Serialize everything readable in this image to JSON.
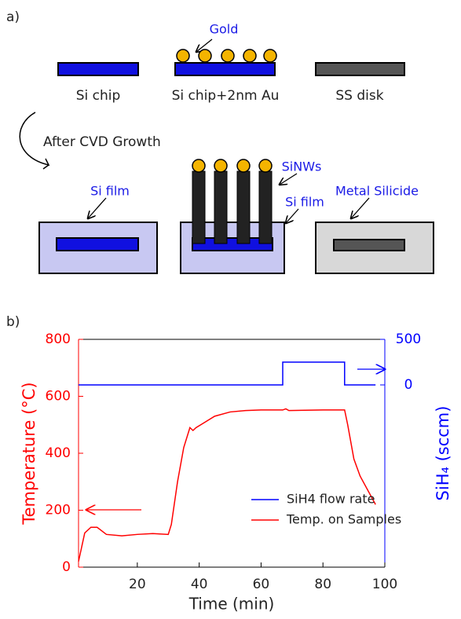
{
  "panel_a": {
    "label": "a)",
    "gold": "Gold",
    "si_chip": "Si chip",
    "si_chip_au": "Si chip+2nm Au",
    "ss_disk": "SS disk",
    "process": "After CVD Growth",
    "si_film_left": "Si film",
    "sinws": "SiNWs",
    "si_film_mid": "Si film",
    "metal_silicide": "Metal Silicide"
  },
  "chart_data": {
    "type": "line",
    "panel_label": "b)",
    "xlabel": "Time (min)",
    "ylabel": "Temperature (°C)",
    "y2label": "SiH₄ (sccm)",
    "xlim": [
      1,
      100
    ],
    "xticks": [
      20,
      40,
      60,
      80,
      100
    ],
    "ylim": [
      0,
      800
    ],
    "yticks": [
      0,
      200,
      400,
      600,
      800
    ],
    "y2lim": [
      -2000,
      500
    ],
    "y2ticks": [
      0,
      500
    ],
    "legend": "lower right",
    "series": [
      {
        "name": "SiH4 flow rate",
        "color": "#0000ff",
        "axis": "y2",
        "x": [
          1,
          67,
          67,
          87,
          87,
          97
        ],
        "values": [
          0,
          0,
          250,
          250,
          0,
          0
        ]
      },
      {
        "name": "Temp. on Samples",
        "color": "#ff0000",
        "x": [
          1,
          3,
          5,
          7,
          10,
          15,
          20,
          25,
          30,
          31,
          33,
          35,
          37,
          38,
          39,
          42,
          45,
          50,
          55,
          60,
          67,
          68,
          69,
          80,
          87,
          88,
          90,
          92,
          95,
          97
        ],
        "values": [
          20,
          120,
          140,
          140,
          115,
          110,
          115,
          118,
          115,
          150,
          300,
          420,
          490,
          480,
          490,
          510,
          530,
          545,
          550,
          552,
          552,
          556,
          550,
          552,
          552,
          500,
          380,
          320,
          260,
          220
        ]
      }
    ]
  }
}
